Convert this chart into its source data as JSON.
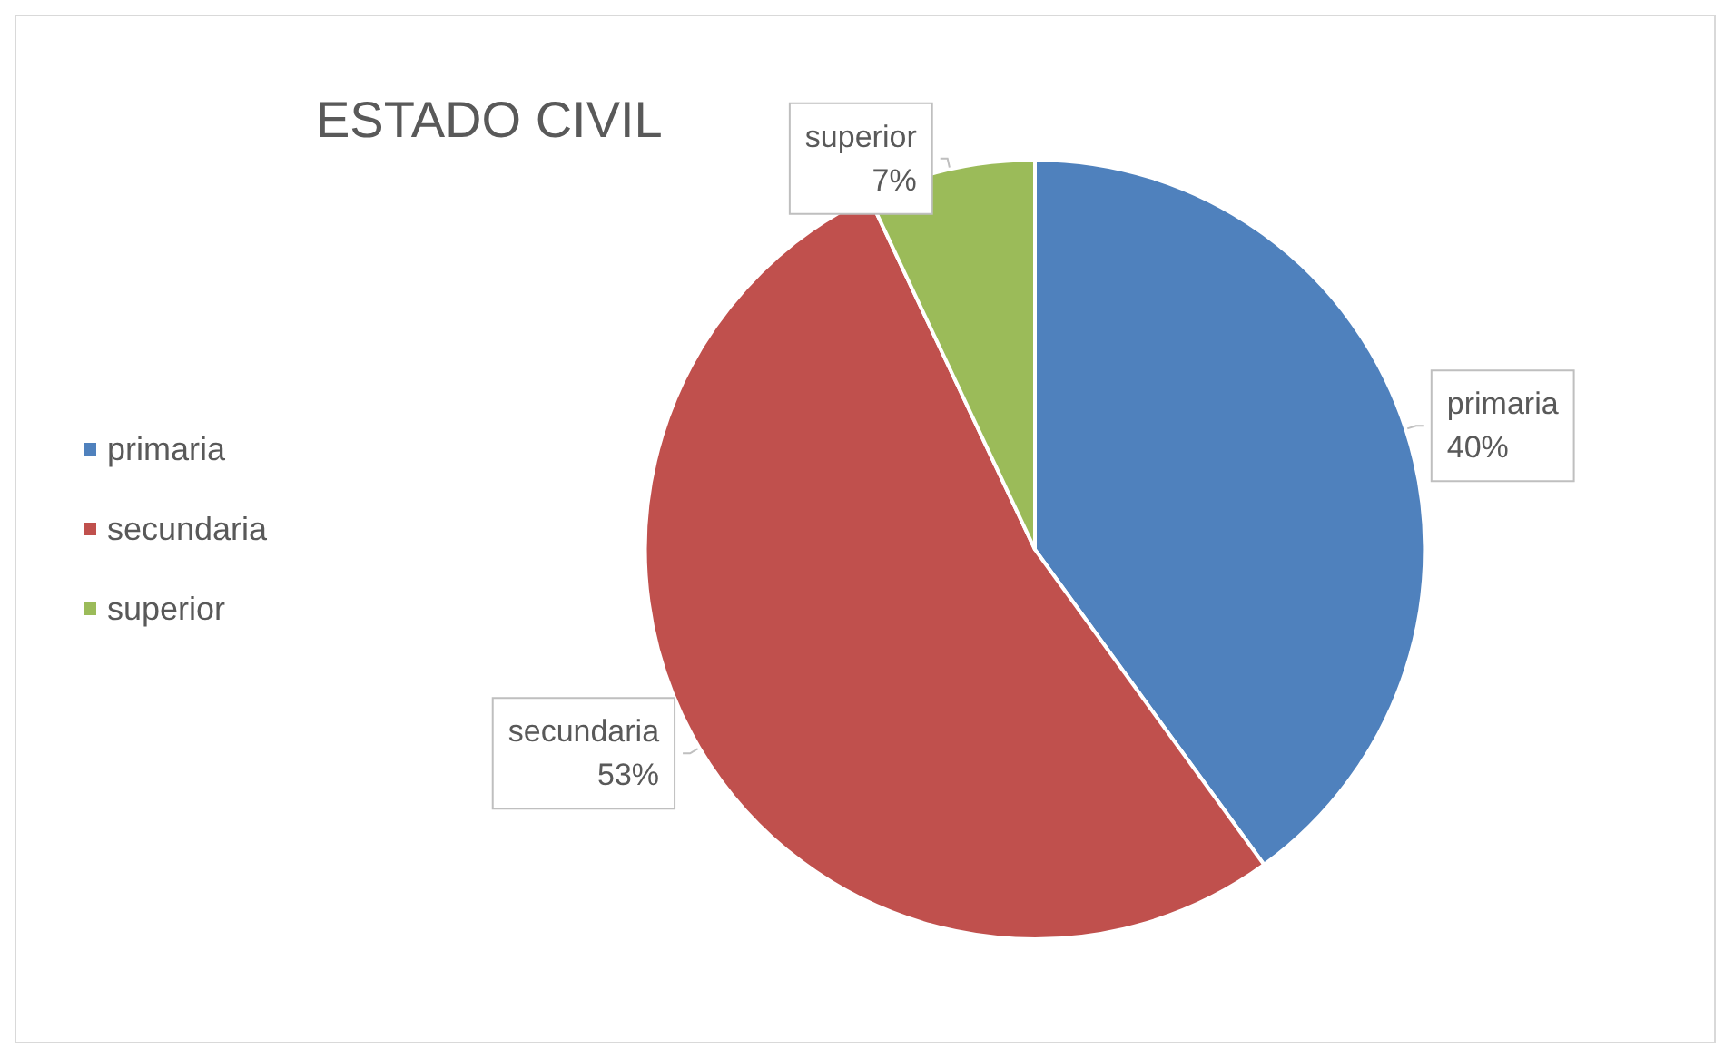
{
  "chart_data": {
    "type": "pie",
    "title": "ESTADO CIVIL",
    "categories": [
      "primaria",
      "secundaria",
      "superior"
    ],
    "values": [
      40,
      53,
      7
    ],
    "value_labels": [
      "40%",
      "53%",
      "7%"
    ],
    "colors": [
      "#4f81bd",
      "#c0504d",
      "#9bbb59"
    ],
    "legend": "left"
  }
}
